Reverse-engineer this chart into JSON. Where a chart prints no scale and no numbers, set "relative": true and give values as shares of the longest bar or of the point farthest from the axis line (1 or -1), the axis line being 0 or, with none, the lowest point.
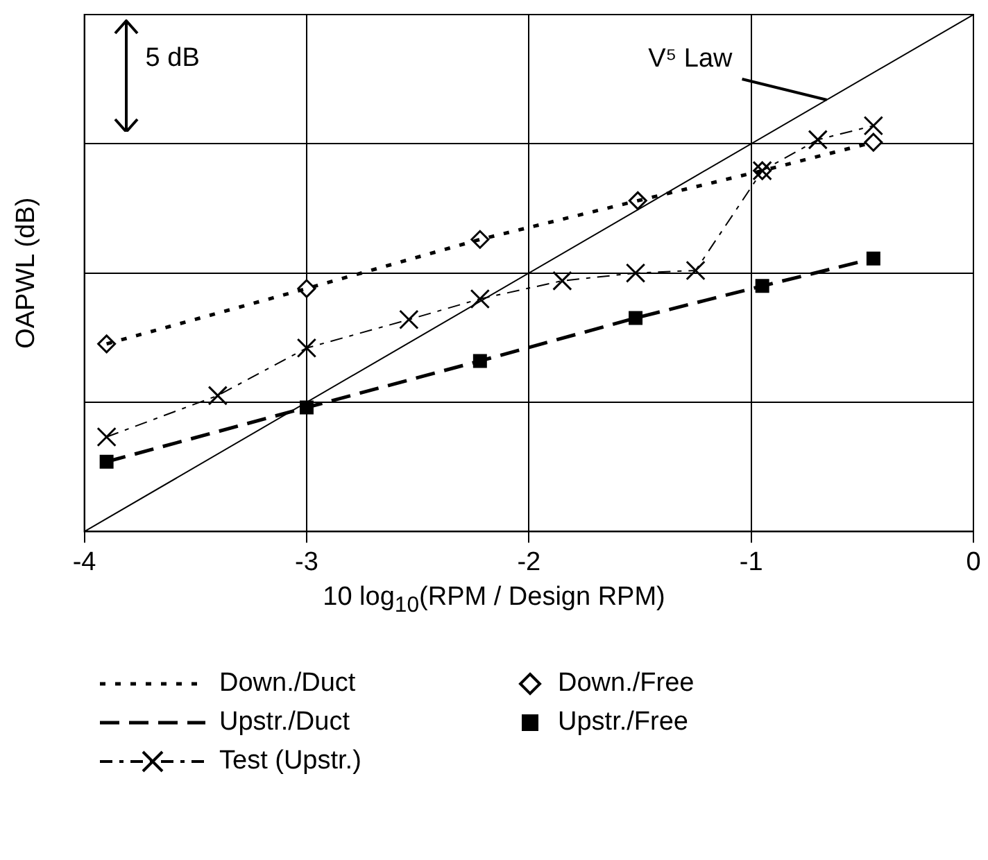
{
  "chart_data": {
    "type": "line",
    "relative": true,
    "xlabel": "10 log$_{10}$(RPM / Design RPM)",
    "ylabel": "OAPWL (dB)",
    "xlim": [
      -4,
      0
    ],
    "xticks": [
      -4,
      -3,
      -2,
      -1,
      0
    ],
    "grid": true,
    "legend": "bottom",
    "annotations": [
      "5 dB",
      {
        "text": "V⁵ Law",
        "x": -0.66,
        "y": 0.835
      }
    ],
    "series": [
      {
        "color": "#000000",
        "line_style": "solid",
        "marker": "none",
        "x": [
          -4,
          0
        ],
        "values": [
          0,
          1
        ]
      },
      {
        "name": "Down./Duct",
        "color": "#000000",
        "line_style": "dotted",
        "marker": "none",
        "x": [
          -3.9,
          -3.0,
          -2.22,
          -1.51,
          -0.95,
          -0.45
        ],
        "values": [
          0.363,
          0.47,
          0.565,
          0.64,
          0.698,
          0.753
        ]
      },
      {
        "name": "Upstr./Duct",
        "color": "#000000",
        "line_style": "dashed",
        "marker": "none",
        "x": [
          -3.9,
          -3.0,
          -2.22,
          -1.52,
          -0.95,
          -0.45
        ],
        "values": [
          0.135,
          0.24,
          0.33,
          0.413,
          0.475,
          0.528
        ]
      },
      {
        "name": "Test (Upstr.)",
        "color": "#000000",
        "line_style": "dashdot",
        "marker": "cross",
        "x": [
          -3.9,
          -3.4,
          -3.0,
          -2.54,
          -2.22,
          -1.85,
          -1.52,
          -1.25,
          -0.95,
          -0.7,
          -0.45
        ],
        "values": [
          0.183,
          0.263,
          0.355,
          0.41,
          0.45,
          0.485,
          0.5,
          0.505,
          0.698,
          0.758,
          0.785
        ]
      },
      {
        "name": "Down./Free",
        "type": "scatter",
        "color": "#000000",
        "marker": "diamond",
        "x": [
          -3.9,
          -3.0,
          -2.22,
          -1.51,
          -0.95,
          -0.45
        ],
        "values": [
          0.363,
          0.47,
          0.565,
          0.64,
          0.698,
          0.753
        ]
      },
      {
        "name": "Upstr./Free",
        "type": "scatter",
        "color": "#000000",
        "marker": "square",
        "x": [
          -3.9,
          -3.0,
          -2.22,
          -1.52,
          -0.95,
          -0.45
        ],
        "values": [
          0.135,
          0.24,
          0.33,
          0.413,
          0.475,
          0.528
        ]
      }
    ]
  }
}
